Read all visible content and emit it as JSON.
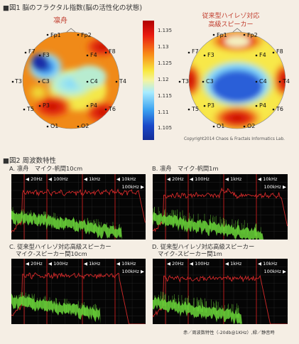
{
  "fig1": {
    "title": "■図1 脳のフラクタル指数(脳の活性化の状態)",
    "left_label": "凛舟",
    "right_label_line1": "従来型ハイレゾ対応",
    "right_label_line2": "高級スピーカー",
    "electrodes": [
      "Fp1",
      "Fp2",
      "F7",
      "F3",
      "F4",
      "F8",
      "T3",
      "C3",
      "C4",
      "T4",
      "T5",
      "P3",
      "P4",
      "T6",
      "O1",
      "O2"
    ],
    "colorbar_ticks": [
      "1.135",
      "1.13",
      "1.125",
      "1.12",
      "1.115",
      "1.11",
      "1.105"
    ],
    "copyright": "Copyright2014 Chaos & Fractals Informatics Lab."
  },
  "fig2": {
    "title": "■図2 周波数特性",
    "panels": [
      {
        "label1": "A. 凛舟　マイク-帆間10cm",
        "label2": ""
      },
      {
        "label1": "B. 凛舟　マイク-帆間1m",
        "label2": ""
      },
      {
        "label1": "C. 従来型ハイレゾ対応高級スピーカー",
        "label2": "マイク-スピーカー間10cm"
      },
      {
        "label1": "D. 従来型ハイレゾ対応高級スピーカー",
        "label2": "マイク-スピーカー間1m"
      }
    ],
    "freq_markers": [
      "20Hz",
      "100Hz",
      "1kHz",
      "10kHz"
    ],
    "freq_end": "100kHz",
    "footnote": "赤／周波数特性（-20db@1KHz）,緑／静音時"
  },
  "colors": {
    "accent_red": "#c03a2b",
    "spectrum_red": "#d42a2a",
    "spectrum_green": "#6bd63a"
  }
}
